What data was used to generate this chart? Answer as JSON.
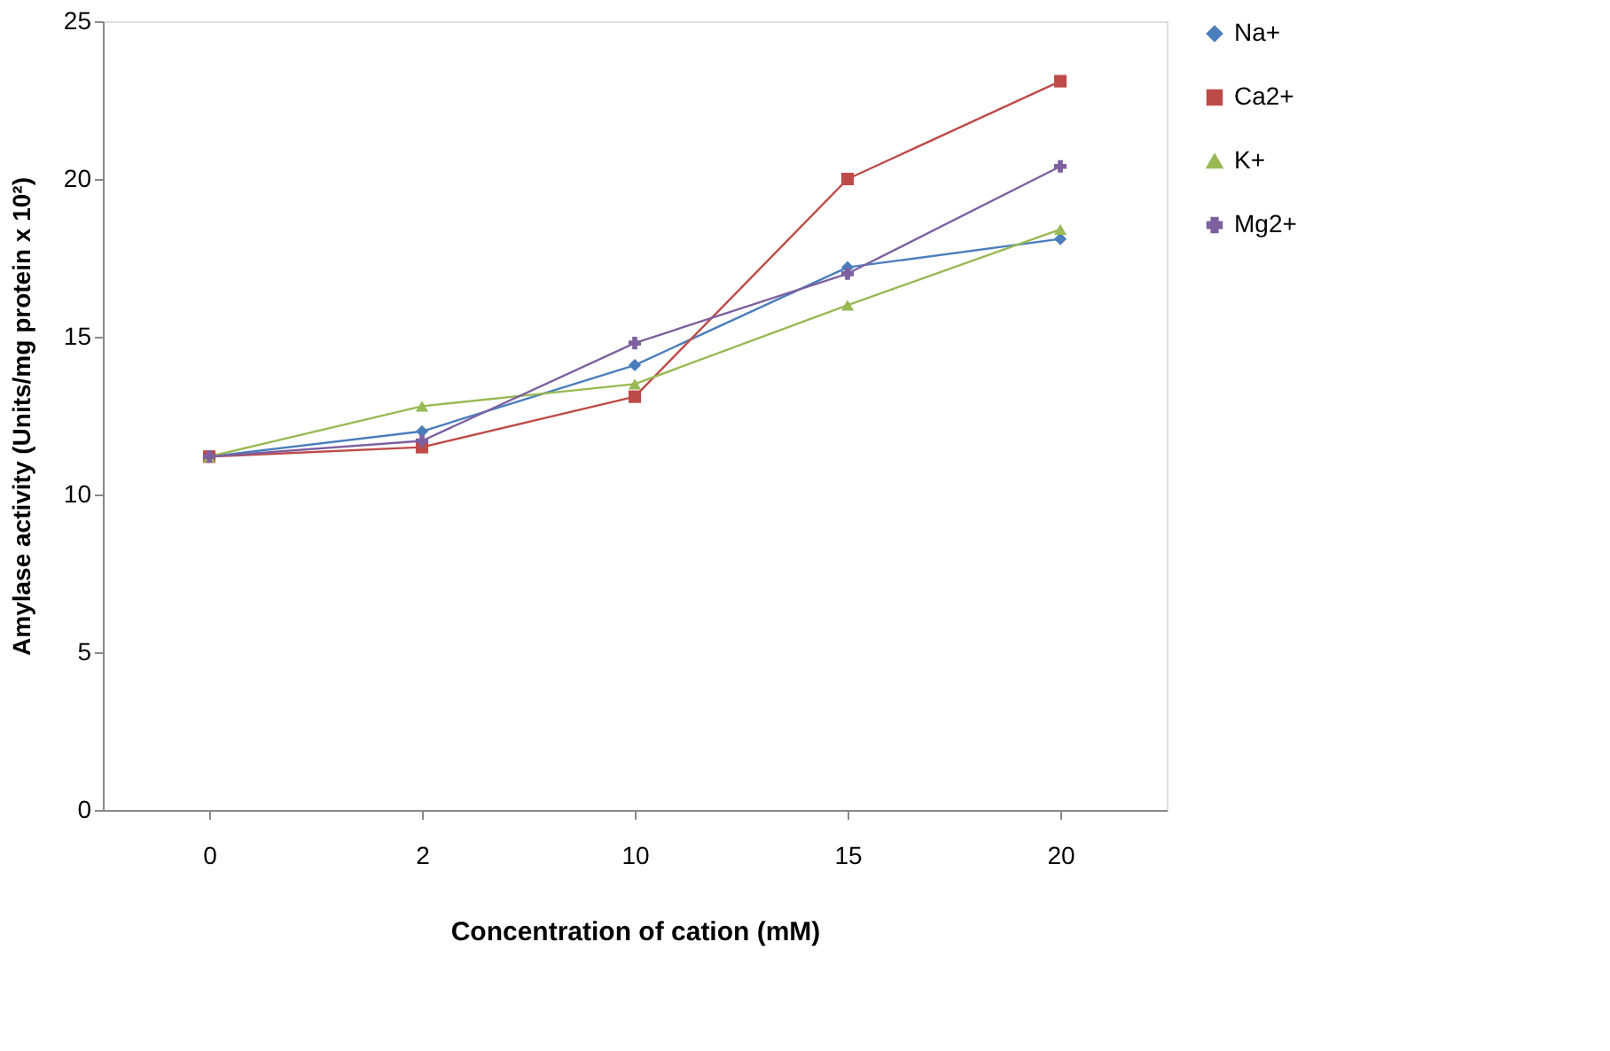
{
  "chart_data": {
    "type": "line",
    "xlabel": "Concentration of cation (mM)",
    "ylabel": "Amylase activity (Units/mg protein x 10²)",
    "categories": [
      "0",
      "2",
      "10",
      "15",
      "20"
    ],
    "series": [
      {
        "name": "Na+",
        "color": "#4a7ebb",
        "marker": "diamond",
        "values": [
          11.2,
          12.0,
          14.1,
          17.2,
          18.1
        ]
      },
      {
        "name": "Ca2+",
        "color": "#be4b48",
        "marker": "square",
        "values": [
          11.2,
          11.5,
          13.1,
          20.0,
          23.1
        ]
      },
      {
        "name": "K+",
        "color": "#98b954",
        "marker": "triangle",
        "values": [
          11.2,
          12.8,
          13.5,
          16.0,
          18.4
        ]
      },
      {
        "name": "Mg2+",
        "color": "#7d60a0",
        "marker": "cross",
        "values": [
          11.2,
          11.7,
          14.8,
          17.0,
          20.4
        ]
      }
    ],
    "ylim": [
      0,
      25
    ],
    "yticks": [
      0,
      5,
      10,
      15,
      20,
      25
    ],
    "grid": false,
    "legend": "right"
  }
}
